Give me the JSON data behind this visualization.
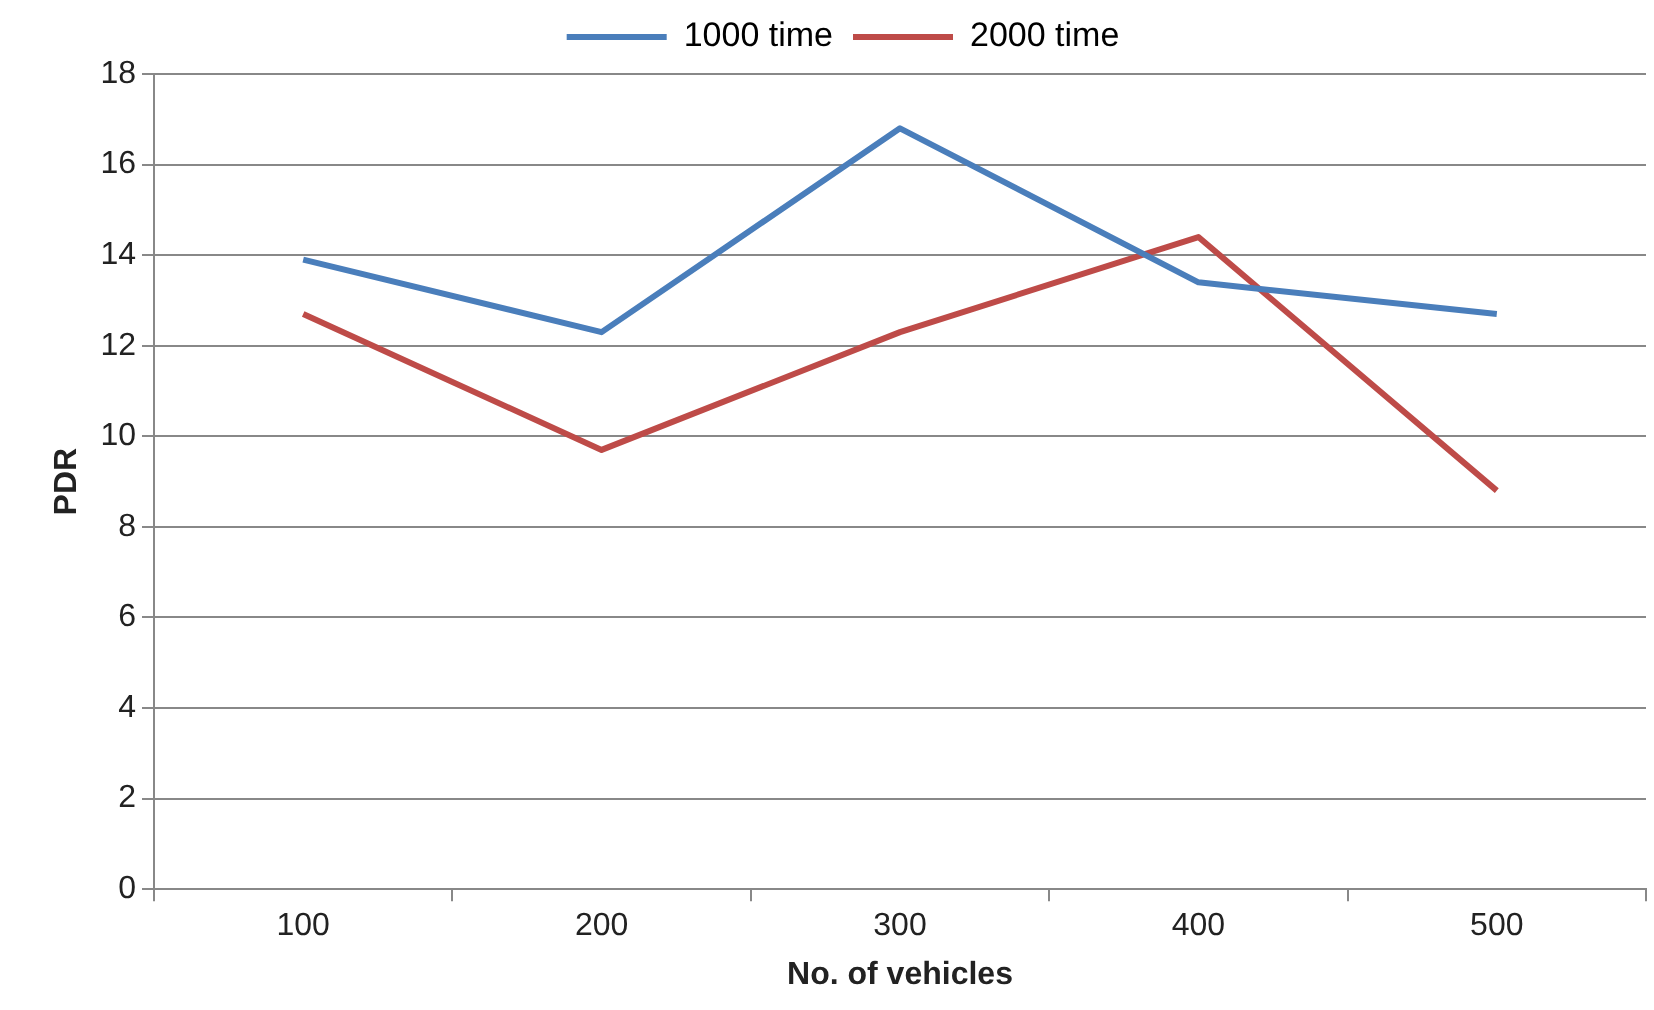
{
  "chart_data": {
    "type": "line",
    "xlabel": "No. of vehicles",
    "ylabel": "PDR",
    "categories": [
      "100",
      "200",
      "300",
      "400",
      "500"
    ],
    "series": [
      {
        "name": "1000 time",
        "color": "#4a7ebb",
        "values": [
          13.9,
          12.3,
          16.8,
          13.4,
          12.7
        ]
      },
      {
        "name": "2000 time",
        "color": "#be4b48",
        "values": [
          12.7,
          9.7,
          12.3,
          14.4,
          8.8
        ]
      }
    ],
    "ylim": [
      0,
      18
    ],
    "yticks": [
      0,
      2,
      4,
      6,
      8,
      10,
      12,
      14,
      16,
      18
    ],
    "grid": "y",
    "legend": "top",
    "marker": "none",
    "line_style": "solid"
  }
}
